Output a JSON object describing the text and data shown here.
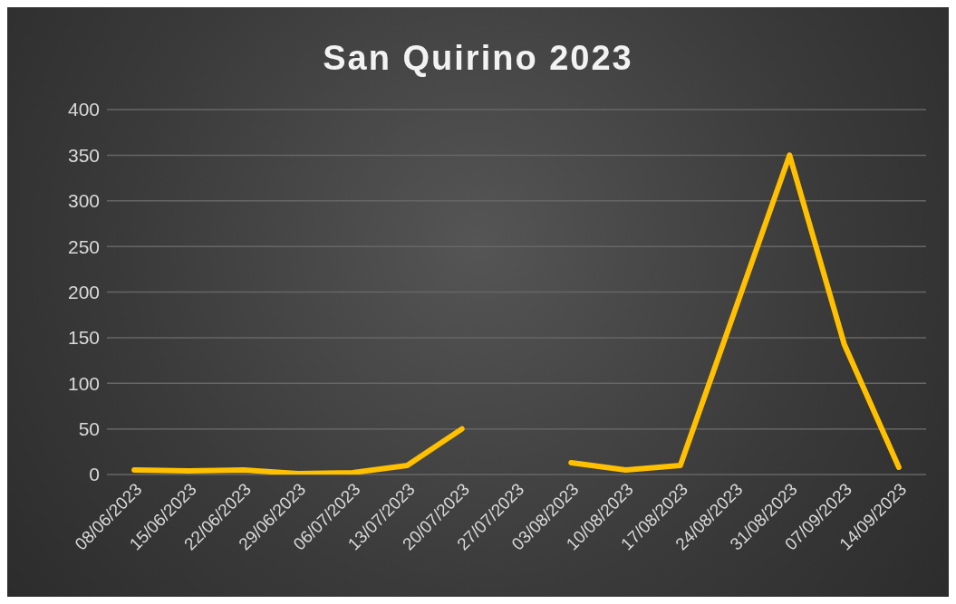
{
  "chart_data": {
    "type": "line",
    "title": "San Quirino 2023",
    "categories": [
      "08/06/2023",
      "15/06/2023",
      "22/06/2023",
      "29/06/2023",
      "06/07/2023",
      "13/07/2023",
      "20/07/2023",
      "27/07/2023",
      "03/08/2023",
      "10/08/2023",
      "17/08/2023",
      "24/08/2023",
      "31/08/2023",
      "07/09/2023",
      "14/09/2023"
    ],
    "series": [
      {
        "color": "#ffc000",
        "values": [
          5,
          4,
          5,
          1,
          2,
          10,
          50,
          null,
          13,
          5,
          10,
          180,
          350,
          143,
          8
        ]
      }
    ],
    "ylim": [
      0,
      400
    ],
    "yticks": [
      0,
      50,
      100,
      150,
      200,
      250,
      300,
      350,
      400
    ],
    "grid": "y",
    "marker": "none",
    "line_style": "solid"
  }
}
